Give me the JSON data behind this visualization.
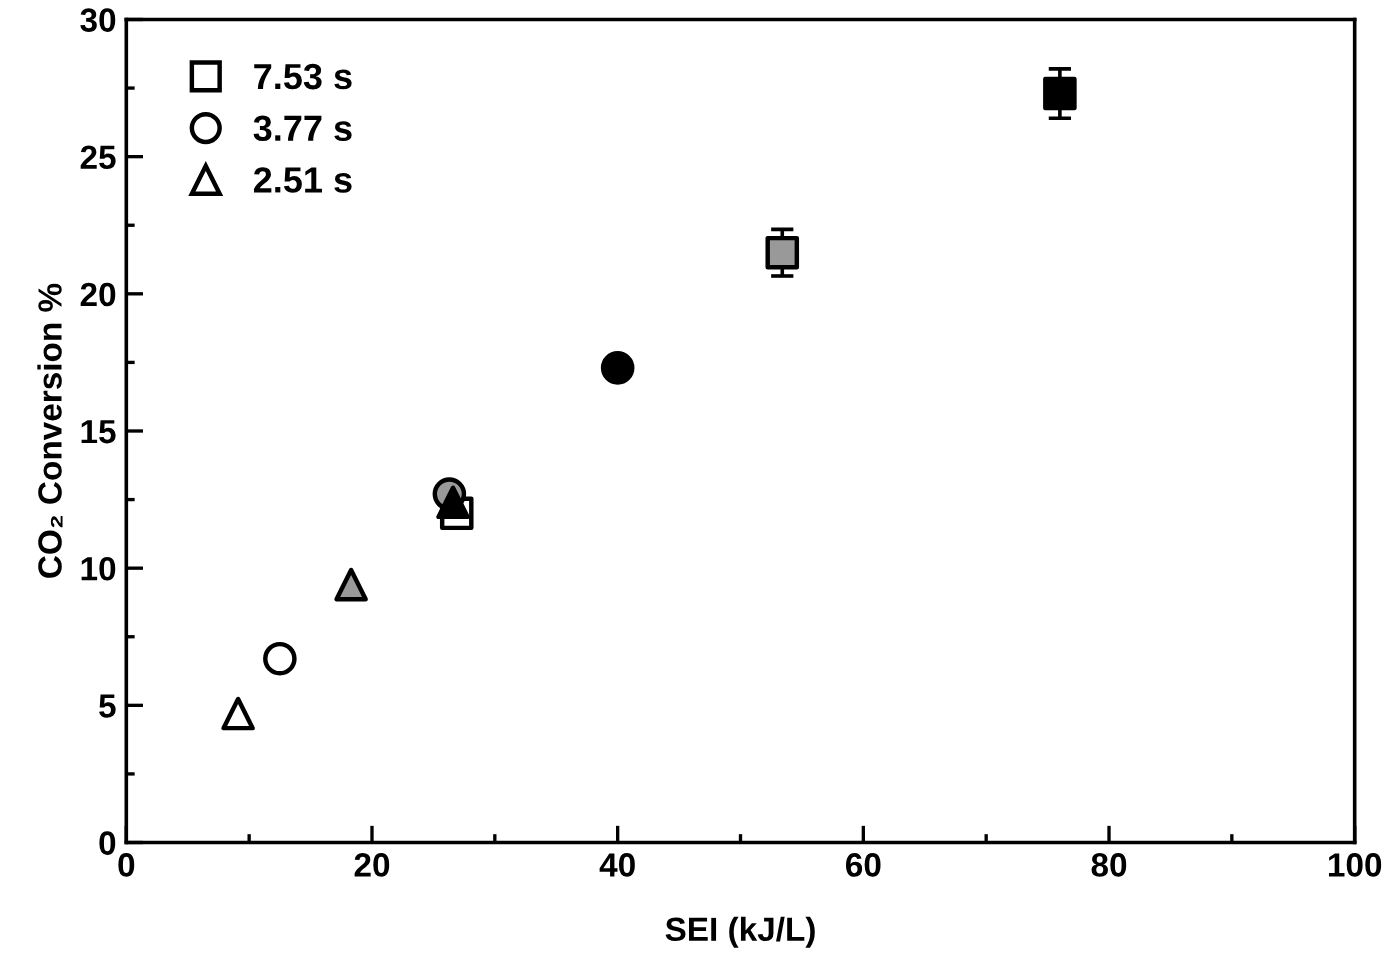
{
  "chart_data": {
    "type": "scatter",
    "xlabel": "SEI (kJ/L)",
    "ylabel": "CO₂ Conversion %",
    "xlim": [
      0,
      100
    ],
    "xticks": [
      0,
      20,
      40,
      60,
      80,
      100
    ],
    "ylim": [
      0,
      30
    ],
    "yticks": [
      0,
      5,
      10,
      15,
      20,
      25,
      30
    ],
    "grid": false,
    "legend": "top left",
    "series": [
      {
        "name": "7.53 s",
        "marker": "square",
        "x": [
          26.9,
          53.4,
          76.0
        ],
        "values": [
          12.0,
          21.5,
          27.3
        ],
        "errors": [
          0.5,
          0.85,
          0.9
        ],
        "colors": [
          "#ffffff",
          "#999999",
          "#000000"
        ]
      },
      {
        "name": "3.77 s",
        "marker": "circle",
        "x": [
          12.5,
          26.3,
          40.0
        ],
        "values": [
          6.7,
          12.7,
          17.3
        ],
        "colors": [
          "#ffffff",
          "#999999",
          "#000000"
        ]
      },
      {
        "name": "2.51 s",
        "marker": "triangle",
        "x": [
          9.1,
          18.3,
          26.6
        ],
        "values": [
          4.7,
          9.4,
          12.4
        ],
        "colors": [
          "#ffffff",
          "#999999",
          "#000000"
        ]
      }
    ]
  }
}
